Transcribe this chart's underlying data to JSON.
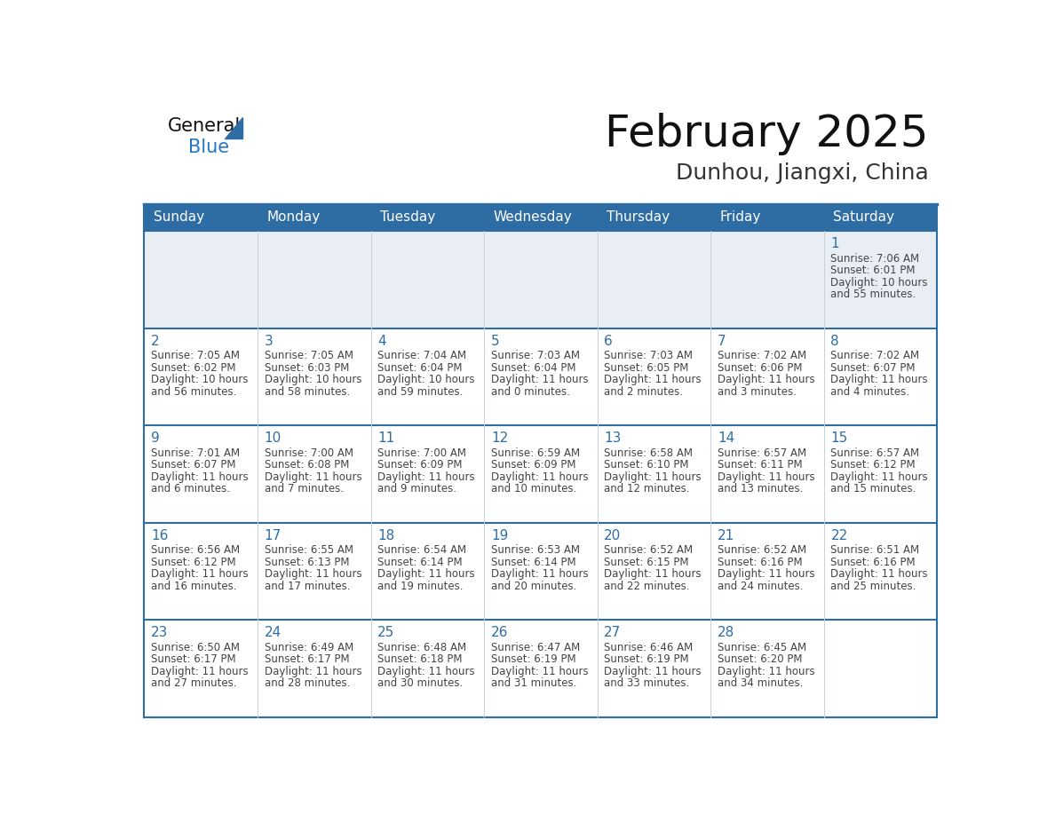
{
  "title": "February 2025",
  "subtitle": "Dunhou, Jiangxi, China",
  "header_bg_color": "#2e6da4",
  "header_text_color": "#ffffff",
  "row1_bg_color": "#e8eef4",
  "cell_bg_color": "#ffffff",
  "border_color": "#2e6da4",
  "day_number_color": "#2e6da4",
  "cell_text_color": "#444444",
  "col_divider_color": "#c8d0d8",
  "days_of_week": [
    "Sunday",
    "Monday",
    "Tuesday",
    "Wednesday",
    "Thursday",
    "Friday",
    "Saturday"
  ],
  "weeks": [
    [
      {
        "day": "",
        "info": ""
      },
      {
        "day": "",
        "info": ""
      },
      {
        "day": "",
        "info": ""
      },
      {
        "day": "",
        "info": ""
      },
      {
        "day": "",
        "info": ""
      },
      {
        "day": "",
        "info": ""
      },
      {
        "day": "1",
        "info": "Sunrise: 7:06 AM\nSunset: 6:01 PM\nDaylight: 10 hours\nand 55 minutes."
      }
    ],
    [
      {
        "day": "2",
        "info": "Sunrise: 7:05 AM\nSunset: 6:02 PM\nDaylight: 10 hours\nand 56 minutes."
      },
      {
        "day": "3",
        "info": "Sunrise: 7:05 AM\nSunset: 6:03 PM\nDaylight: 10 hours\nand 58 minutes."
      },
      {
        "day": "4",
        "info": "Sunrise: 7:04 AM\nSunset: 6:04 PM\nDaylight: 10 hours\nand 59 minutes."
      },
      {
        "day": "5",
        "info": "Sunrise: 7:03 AM\nSunset: 6:04 PM\nDaylight: 11 hours\nand 0 minutes."
      },
      {
        "day": "6",
        "info": "Sunrise: 7:03 AM\nSunset: 6:05 PM\nDaylight: 11 hours\nand 2 minutes."
      },
      {
        "day": "7",
        "info": "Sunrise: 7:02 AM\nSunset: 6:06 PM\nDaylight: 11 hours\nand 3 minutes."
      },
      {
        "day": "8",
        "info": "Sunrise: 7:02 AM\nSunset: 6:07 PM\nDaylight: 11 hours\nand 4 minutes."
      }
    ],
    [
      {
        "day": "9",
        "info": "Sunrise: 7:01 AM\nSunset: 6:07 PM\nDaylight: 11 hours\nand 6 minutes."
      },
      {
        "day": "10",
        "info": "Sunrise: 7:00 AM\nSunset: 6:08 PM\nDaylight: 11 hours\nand 7 minutes."
      },
      {
        "day": "11",
        "info": "Sunrise: 7:00 AM\nSunset: 6:09 PM\nDaylight: 11 hours\nand 9 minutes."
      },
      {
        "day": "12",
        "info": "Sunrise: 6:59 AM\nSunset: 6:09 PM\nDaylight: 11 hours\nand 10 minutes."
      },
      {
        "day": "13",
        "info": "Sunrise: 6:58 AM\nSunset: 6:10 PM\nDaylight: 11 hours\nand 12 minutes."
      },
      {
        "day": "14",
        "info": "Sunrise: 6:57 AM\nSunset: 6:11 PM\nDaylight: 11 hours\nand 13 minutes."
      },
      {
        "day": "15",
        "info": "Sunrise: 6:57 AM\nSunset: 6:12 PM\nDaylight: 11 hours\nand 15 minutes."
      }
    ],
    [
      {
        "day": "16",
        "info": "Sunrise: 6:56 AM\nSunset: 6:12 PM\nDaylight: 11 hours\nand 16 minutes."
      },
      {
        "day": "17",
        "info": "Sunrise: 6:55 AM\nSunset: 6:13 PM\nDaylight: 11 hours\nand 17 minutes."
      },
      {
        "day": "18",
        "info": "Sunrise: 6:54 AM\nSunset: 6:14 PM\nDaylight: 11 hours\nand 19 minutes."
      },
      {
        "day": "19",
        "info": "Sunrise: 6:53 AM\nSunset: 6:14 PM\nDaylight: 11 hours\nand 20 minutes."
      },
      {
        "day": "20",
        "info": "Sunrise: 6:52 AM\nSunset: 6:15 PM\nDaylight: 11 hours\nand 22 minutes."
      },
      {
        "day": "21",
        "info": "Sunrise: 6:52 AM\nSunset: 6:16 PM\nDaylight: 11 hours\nand 24 minutes."
      },
      {
        "day": "22",
        "info": "Sunrise: 6:51 AM\nSunset: 6:16 PM\nDaylight: 11 hours\nand 25 minutes."
      }
    ],
    [
      {
        "day": "23",
        "info": "Sunrise: 6:50 AM\nSunset: 6:17 PM\nDaylight: 11 hours\nand 27 minutes."
      },
      {
        "day": "24",
        "info": "Sunrise: 6:49 AM\nSunset: 6:17 PM\nDaylight: 11 hours\nand 28 minutes."
      },
      {
        "day": "25",
        "info": "Sunrise: 6:48 AM\nSunset: 6:18 PM\nDaylight: 11 hours\nand 30 minutes."
      },
      {
        "day": "26",
        "info": "Sunrise: 6:47 AM\nSunset: 6:19 PM\nDaylight: 11 hours\nand 31 minutes."
      },
      {
        "day": "27",
        "info": "Sunrise: 6:46 AM\nSunset: 6:19 PM\nDaylight: 11 hours\nand 33 minutes."
      },
      {
        "day": "28",
        "info": "Sunrise: 6:45 AM\nSunset: 6:20 PM\nDaylight: 11 hours\nand 34 minutes."
      },
      {
        "day": "",
        "info": ""
      }
    ]
  ],
  "logo_general_color": "#111111",
  "logo_blue_color": "#2277cc",
  "logo_triangle_color": "#2e6da4",
  "title_fontsize": 36,
  "subtitle_fontsize": 18,
  "header_fontsize": 11,
  "day_num_fontsize": 11,
  "cell_text_fontsize": 8.5
}
